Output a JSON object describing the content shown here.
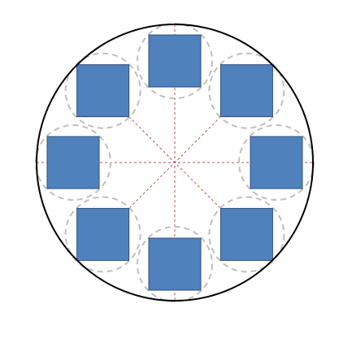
{
  "diagram": {
    "item_count": 8,
    "colors": {
      "outer_circle_stroke": "#000000",
      "guide_circle_stroke": "#bfbfbf",
      "axis_line_stroke": "#c0504d",
      "square_fill": "#4f81bd",
      "square_stroke": "#2e4f7a"
    }
  }
}
